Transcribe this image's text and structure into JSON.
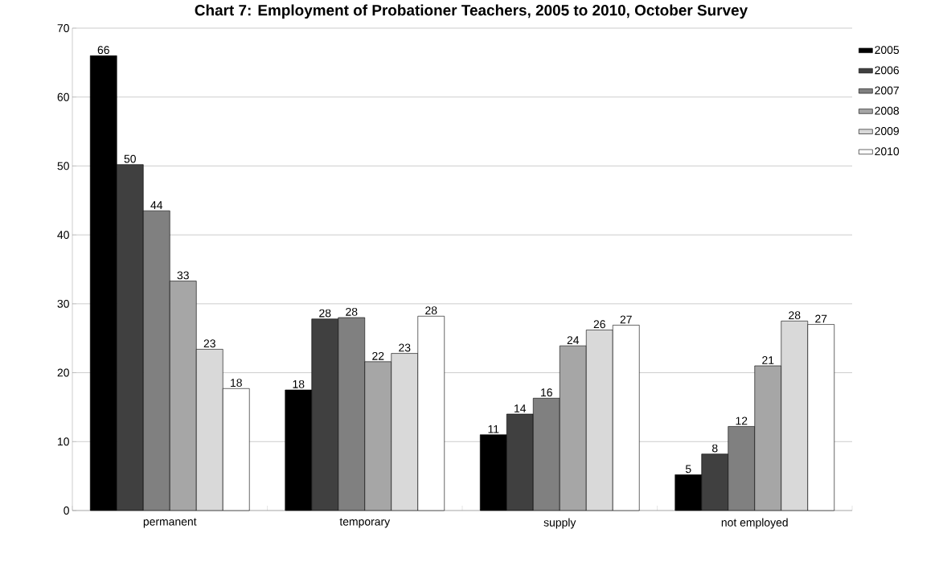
{
  "chart_data": {
    "type": "bar",
    "title": "Chart 7: Employment of Probationer Teachers, 2005 to 2010, October Survey",
    "categories": [
      "permanent",
      "temporary",
      "supply",
      "not employed"
    ],
    "series": [
      {
        "name": "2005",
        "color": "#000000",
        "values": [
          66,
          17.5,
          11,
          5.2
        ],
        "value_labels": [
          "66",
          "18",
          "11",
          "5"
        ]
      },
      {
        "name": "2006",
        "color": "#404040",
        "values": [
          50.2,
          27.8,
          14,
          8.2
        ],
        "value_labels": [
          "50",
          "28",
          "14",
          "8"
        ]
      },
      {
        "name": "2007",
        "color": "#808080",
        "values": [
          43.5,
          28,
          16.3,
          12.2
        ],
        "value_labels": [
          "44",
          "28",
          "16",
          "12"
        ]
      },
      {
        "name": "2008",
        "color": "#a6a6a6",
        "values": [
          33.3,
          21.6,
          23.9,
          21
        ],
        "value_labels": [
          "33",
          "22",
          "24",
          "21"
        ]
      },
      {
        "name": "2009",
        "color": "#d9d9d9",
        "values": [
          23.4,
          22.8,
          26.2,
          27.5
        ],
        "value_labels": [
          "23",
          "23",
          "26",
          "28"
        ]
      },
      {
        "name": "2010",
        "color": "#ffffff",
        "values": [
          17.7,
          28.2,
          26.9,
          27
        ],
        "value_labels": [
          "18",
          "28",
          "27",
          "27"
        ]
      }
    ],
    "ylim": [
      0,
      70
    ],
    "yticks": [
      0,
      10,
      20,
      30,
      40,
      50,
      60,
      70
    ],
    "grid": "y",
    "legend": "right"
  }
}
